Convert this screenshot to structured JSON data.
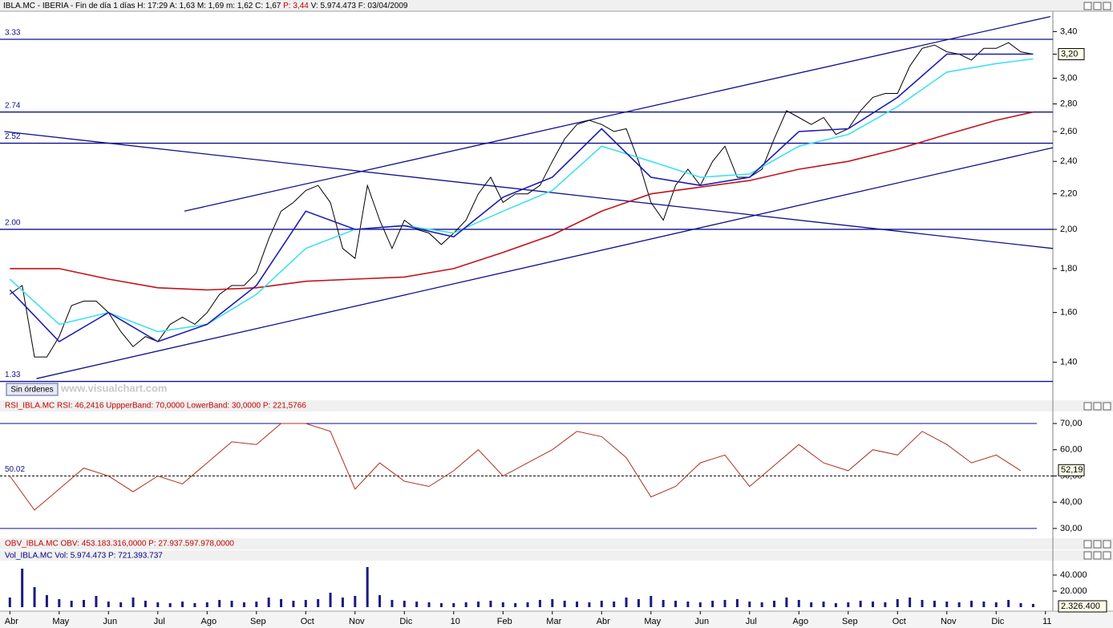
{
  "header": [
    "IBLA.MC - IBERIA - Fin de día 1 días",
    "H: 17:29",
    "A: 1,63",
    "M: 1,69",
    "m: 1,62",
    "C: 1,67",
    "P: 3,44",
    "V: 5.974.473",
    "F: 03/04/2009"
  ],
  "ui": {
    "button": "Sin órdenes",
    "watermark": "www.visualchart.com"
  },
  "chart_data": [
    {
      "type": "line",
      "log": true,
      "xlim": [
        -0.2,
        21.15
      ],
      "ylim": [
        1.27,
        3.56
      ],
      "xticks": [
        {
          "value": 0,
          "label": "Abr"
        },
        {
          "value": 1,
          "label": "May"
        },
        {
          "value": 2,
          "label": "Jun"
        },
        {
          "value": 3,
          "label": "Jul"
        },
        {
          "value": 4,
          "label": "Ago"
        },
        {
          "value": 5,
          "label": "Sep"
        },
        {
          "value": 6,
          "label": "Oct"
        },
        {
          "value": 7,
          "label": "Nov"
        },
        {
          "value": 8,
          "label": "Dic"
        },
        {
          "value": 9,
          "label": "10"
        },
        {
          "value": 10,
          "label": "Feb"
        },
        {
          "value": 11,
          "label": "Mar"
        },
        {
          "value": 12,
          "label": "Abr"
        },
        {
          "value": 13,
          "label": "May"
        },
        {
          "value": 14,
          "label": "Jun"
        },
        {
          "value": 15,
          "label": "Jul"
        },
        {
          "value": 16,
          "label": "Ago"
        },
        {
          "value": 17,
          "label": "Sep"
        },
        {
          "value": 18,
          "label": "Oct"
        },
        {
          "value": 19,
          "label": "Nov"
        },
        {
          "value": 20,
          "label": "Dic"
        },
        {
          "value": 21,
          "label": "11"
        }
      ],
      "yticks": [
        {
          "value": 1.4,
          "label": "1,40"
        },
        {
          "value": 1.6,
          "label": "1,60"
        },
        {
          "value": 1.8,
          "label": "1,80"
        },
        {
          "value": 2.0,
          "label": "2,00"
        },
        {
          "value": 2.2,
          "label": "2,20"
        },
        {
          "value": 2.4,
          "label": "2,40"
        },
        {
          "value": 2.6,
          "label": "2,60"
        },
        {
          "value": 2.8,
          "label": "2,80"
        },
        {
          "value": 3.0,
          "label": "3,00"
        },
        {
          "value": 3.2,
          "label": "3,20"
        },
        {
          "value": 3.4,
          "label": "3,40"
        }
      ],
      "hlines": [
        3.33,
        2.74,
        2.52,
        {
          "value": 2,
          "label": "2.00"
        },
        1.33
      ],
      "trendlines": [
        {
          "x": [
            3.54,
            21.1
          ],
          "y": [
            2.1,
            3.54
          ]
        },
        {
          "x": [
            0.54,
            21.15
          ],
          "y": [
            1.34,
            2.49
          ]
        },
        {
          "x": [
            -0.11,
            21.15
          ],
          "y": [
            2.6,
            1.9
          ]
        }
      ],
      "last": {
        "value": 3.2,
        "label": "3,20"
      },
      "x": [
        0,
        0.25,
        0.5,
        0.75,
        1,
        1.25,
        1.5,
        1.75,
        2,
        2.25,
        2.5,
        2.75,
        3,
        3.25,
        3.5,
        3.75,
        4,
        4.25,
        4.5,
        4.75,
        5,
        5.25,
        5.5,
        5.75,
        6,
        6.25,
        6.5,
        6.75,
        7,
        7.25,
        7.5,
        7.75,
        8,
        8.25,
        8.5,
        8.75,
        9,
        9.25,
        9.5,
        9.75,
        10,
        10.25,
        10.5,
        10.75,
        11,
        11.25,
        11.5,
        11.75,
        12,
        12.25,
        12.5,
        12.75,
        13,
        13.25,
        13.5,
        13.75,
        14,
        14.25,
        14.5,
        14.75,
        15,
        15.25,
        15.5,
        15.75,
        16,
        16.25,
        16.5,
        16.75,
        17,
        17.25,
        17.5,
        17.75,
        18,
        18.25,
        18.5,
        18.75,
        19,
        19.25,
        19.5,
        19.75,
        20,
        20.25,
        20.5,
        20.75
      ],
      "series": [
        {
          "color": "#000000",
          "values": [
            1.68,
            1.72,
            1.42,
            1.42,
            1.5,
            1.63,
            1.65,
            1.65,
            1.6,
            1.52,
            1.46,
            1.5,
            1.48,
            1.55,
            1.58,
            1.55,
            1.6,
            1.68,
            1.72,
            1.72,
            1.78,
            1.95,
            2.1,
            2.15,
            2.22,
            2.25,
            2.15,
            1.9,
            1.85,
            2.25,
            2.05,
            1.9,
            2.05,
            2.0,
            1.98,
            1.92,
            1.98,
            2.05,
            2.2,
            2.3,
            2.15,
            2.2,
            2.2,
            2.25,
            2.4,
            2.55,
            2.65,
            2.68,
            2.65,
            2.6,
            2.62,
            2.4,
            2.15,
            2.05,
            2.25,
            2.35,
            2.25,
            2.4,
            2.5,
            2.3,
            2.3,
            2.35,
            2.55,
            2.75,
            2.7,
            2.65,
            2.7,
            2.58,
            2.62,
            2.75,
            2.85,
            2.88,
            2.88,
            3.1,
            3.25,
            3.28,
            3.22,
            3.2,
            3.15,
            3.25,
            3.25,
            3.3,
            3.22,
            3.2
          ]
        },
        {
          "color": "#c0141c",
          "x": [
            0,
            1,
            2,
            3,
            4,
            5,
            6,
            7,
            8,
            9,
            10,
            11,
            12,
            13,
            14,
            15,
            16,
            17,
            18,
            19,
            20,
            20.75
          ],
          "values": [
            1.8,
            1.8,
            1.75,
            1.71,
            1.7,
            1.71,
            1.74,
            1.75,
            1.76,
            1.8,
            1.88,
            1.97,
            2.1,
            2.2,
            2.24,
            2.28,
            2.35,
            2.4,
            2.48,
            2.58,
            2.68,
            2.74
          ]
        },
        {
          "color": "#40e0f0",
          "x": [
            0,
            1,
            2,
            3,
            4,
            5,
            6,
            7,
            8,
            9,
            10,
            11,
            12,
            13,
            14,
            15,
            16,
            17,
            18,
            19,
            20,
            20.75
          ],
          "values": [
            1.75,
            1.55,
            1.6,
            1.52,
            1.55,
            1.68,
            1.9,
            2.0,
            2.02,
            1.98,
            2.1,
            2.22,
            2.5,
            2.4,
            2.3,
            2.32,
            2.5,
            2.58,
            2.78,
            3.05,
            3.12,
            3.16
          ]
        },
        {
          "color": "#1c1cb4",
          "x": [
            0,
            1,
            2,
            3,
            4,
            5,
            6,
            7,
            8,
            9,
            10,
            11,
            12,
            13,
            14,
            15,
            16,
            17,
            18,
            19,
            20,
            20.75
          ],
          "values": [
            1.7,
            1.48,
            1.6,
            1.48,
            1.55,
            1.72,
            2.1,
            2.0,
            2.02,
            1.96,
            2.18,
            2.3,
            2.62,
            2.3,
            2.25,
            2.3,
            2.6,
            2.62,
            2.85,
            3.2,
            3.2,
            3.2
          ]
        }
      ]
    },
    {
      "type": "line",
      "title": "RSI_IBLA.MC  RSI: 46,2416  UppperBand: 70,0000  LowerBand: 30,0000  P: 221,5766",
      "ylim": [
        26.6,
        74.9
      ],
      "yticks": [
        {
          "value": 30,
          "label": "30,00"
        },
        {
          "value": 40,
          "label": "40,00"
        },
        {
          "value": 50,
          "label": "50,00"
        },
        {
          "value": 60,
          "label": "60,00"
        },
        {
          "value": 70,
          "label": "70,00"
        }
      ],
      "bands": [
        70,
        30
      ],
      "midline": 50.02,
      "last": {
        "value": 52.19,
        "label": "52,19"
      },
      "x": [
        0,
        0.5,
        1,
        1.5,
        2,
        2.5,
        3,
        3.5,
        4,
        4.5,
        5,
        5.5,
        6,
        6.5,
        7,
        7.5,
        8,
        8.5,
        9,
        9.5,
        10,
        10.5,
        11,
        11.5,
        12,
        12.5,
        13,
        13.5,
        14,
        14.5,
        15,
        15.5,
        16,
        16.5,
        17,
        17.5,
        18,
        18.5,
        19,
        19.5,
        20,
        20.5
      ],
      "series": [
        {
          "color": "#b03020",
          "values": [
            50,
            37,
            45,
            53,
            50,
            44,
            50,
            47,
            55,
            63,
            62,
            70,
            70,
            67,
            45,
            55,
            48,
            46,
            52,
            60,
            50,
            55,
            60,
            67,
            65,
            57,
            42,
            46,
            55,
            58,
            46,
            54,
            62,
            55,
            52,
            60,
            58,
            67,
            62,
            55,
            58,
            52
          ]
        }
      ]
    },
    {
      "type": "header",
      "title": "OBV_IBLA.MC  OBV: 453.183.316,0000  P: 27.937.597.978,0000"
    },
    {
      "type": "bar",
      "title": "Vol_IBLA.MC  Vol: 5.974.473  P: 721.393.737",
      "ylim": [
        0,
        57000
      ],
      "yticks": [
        {
          "value": 20000,
          "label": "20.000"
        },
        {
          "value": 40000,
          "label": "40.000"
        }
      ],
      "last_label": "2.326.400",
      "color": "#1a1a80",
      "x": [
        0,
        0.25,
        0.5,
        0.75,
        1,
        1.25,
        1.5,
        1.75,
        2,
        2.25,
        2.5,
        2.75,
        3,
        3.25,
        3.5,
        3.75,
        4,
        4.25,
        4.5,
        4.75,
        5,
        5.25,
        5.5,
        5.75,
        6,
        6.25,
        6.5,
        6.75,
        7,
        7.25,
        7.5,
        7.75,
        8,
        8.25,
        8.5,
        8.75,
        9,
        9.25,
        9.5,
        9.75,
        10,
        10.25,
        10.5,
        10.75,
        11,
        11.25,
        11.5,
        11.75,
        12,
        12.25,
        12.5,
        12.75,
        13,
        13.25,
        13.5,
        13.75,
        14,
        14.25,
        14.5,
        14.75,
        15,
        15.25,
        15.5,
        15.75,
        16,
        16.25,
        16.5,
        16.75,
        17,
        17.25,
        17.5,
        17.75,
        18,
        18.25,
        18.5,
        18.75,
        19,
        19.25,
        19.5,
        19.75,
        20,
        20.25,
        20.5,
        20.75
      ],
      "values": [
        12000,
        48000,
        25000,
        15000,
        10000,
        8000,
        9000,
        14000,
        7000,
        6000,
        12000,
        8000,
        6000,
        5000,
        7000,
        5000,
        6000,
        9000,
        8000,
        6000,
        7000,
        12000,
        10000,
        8000,
        9000,
        10000,
        18000,
        12000,
        14000,
        50000,
        15000,
        9000,
        8000,
        7000,
        6000,
        5000,
        5000,
        6000,
        7000,
        8000,
        6000,
        5000,
        6000,
        9000,
        10000,
        8000,
        7000,
        6000,
        8000,
        7000,
        12000,
        10000,
        14000,
        9000,
        8000,
        7000,
        6000,
        8000,
        9000,
        10000,
        7000,
        6000,
        8000,
        12000,
        9000,
        6000,
        7000,
        5000,
        6000,
        8000,
        7000,
        6000,
        10000,
        12000,
        9000,
        8000,
        7000,
        6000,
        8000,
        7000,
        6000,
        9000,
        5000,
        4000
      ]
    }
  ]
}
